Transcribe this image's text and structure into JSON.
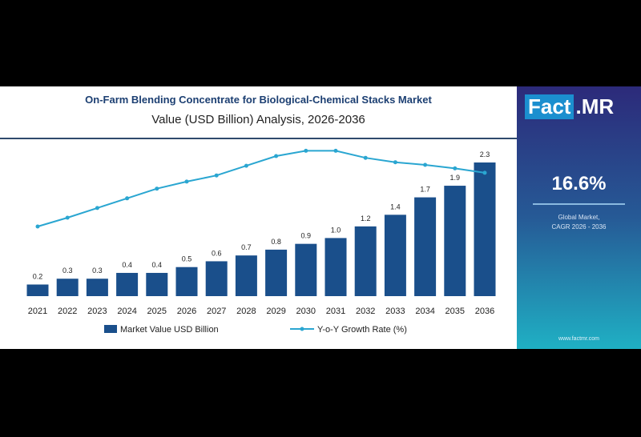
{
  "chart_data": {
    "type": "bar",
    "title": "On-Farm Blending Concentrate for Biological-Chemical Stacks Market",
    "subtitle": "Value (USD Billion) Analysis, 2026-2036",
    "categories": [
      "2021",
      "2022",
      "2023",
      "2024",
      "2025",
      "2026",
      "2027",
      "2028",
      "2029",
      "2030",
      "2031",
      "2032",
      "2033",
      "2034",
      "2035",
      "2036"
    ],
    "series": [
      {
        "name": "Market Value USD Billion",
        "type": "bar",
        "values": [
          0.2,
          0.3,
          0.3,
          0.4,
          0.4,
          0.5,
          0.6,
          0.7,
          0.8,
          0.9,
          1.0,
          1.2,
          1.4,
          1.7,
          1.9,
          2.3
        ],
        "labels": [
          "0.2",
          "0.3",
          "0.3",
          "0.4",
          "0.4",
          "0.5",
          "0.6",
          "0.7",
          "0.8",
          "0.9",
          "1.0",
          "1.2",
          "1.4",
          "1.7",
          "1.9",
          "2.3"
        ]
      },
      {
        "name": "Y-o-Y Growth Rate (%)",
        "type": "line",
        "values": [
          8.0,
          9.0,
          10.1,
          11.2,
          12.3,
          13.1,
          13.8,
          14.9,
          16.0,
          16.6,
          16.6,
          15.8,
          15.3,
          15.0,
          14.6,
          14.1
        ]
      }
    ],
    "legend": "bottom",
    "colors": {
      "bar": "#1a4f8b",
      "line": "#2aa6d1"
    }
  },
  "side": {
    "logo_a": "Fact",
    "logo_b": ".MR",
    "cagr": "16.6%",
    "label1": "Global Market,",
    "label2": "CAGR 2026 - 2036",
    "url": "www.factmr.com"
  }
}
